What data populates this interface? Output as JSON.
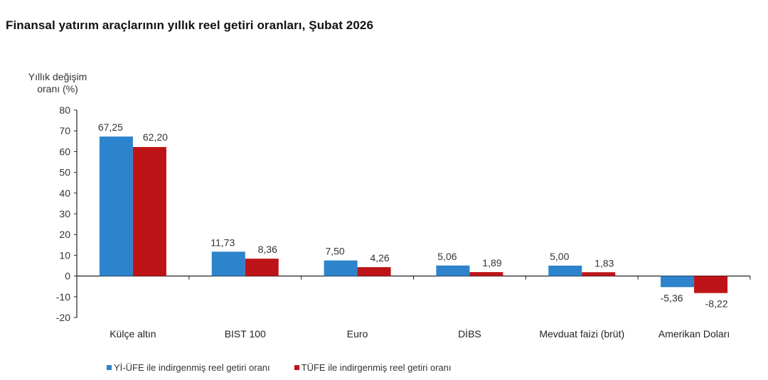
{
  "chart_data": {
    "type": "bar",
    "title": "Finansal yatırım araçlarının yıllık reel getiri oranları, Şubat 2026",
    "ylabel": "Yıllık değişim oranı (%)",
    "xlabel": "",
    "ylim": [
      -20,
      80
    ],
    "yticks": [
      80,
      70,
      60,
      50,
      40,
      30,
      20,
      10,
      0,
      -10,
      -20
    ],
    "grid": false,
    "legend_position": "bottom",
    "categories": [
      "Külçe altın",
      "BIST 100",
      "Euro",
      "DİBS",
      "Mevduat faizi (brüt)",
      "Amerikan Doları"
    ],
    "series": [
      {
        "name": "Yİ-ÜFE ile indirgenmiş reel getiri oranı",
        "color": "#2D83CC",
        "values": [
          67.25,
          11.73,
          7.5,
          5.06,
          5.0,
          -5.36
        ],
        "labels": [
          "67,25",
          "11,73",
          "7,50",
          "5,06",
          "5,00",
          "-5,36"
        ]
      },
      {
        "name": "TÜFE ile indirgenmiş reel getiri oranı",
        "color": "#BE1418",
        "values": [
          62.2,
          8.36,
          4.26,
          1.89,
          1.83,
          -8.22
        ],
        "labels": [
          "62,20",
          "8,36",
          "4,26",
          "1,89",
          "1,83",
          "-8,22"
        ]
      }
    ]
  },
  "header": {
    "title": "Finansal yatırım araçlarının yıllık reel getiri oranları, Şubat 2026"
  },
  "axis": {
    "ylabel_line1": "Yıllık değişim",
    "ylabel_line2": "oranı (%)"
  },
  "legend": {
    "items": [
      {
        "label": "Yİ-ÜFE ile indirgenmiş reel getiri oranı",
        "color": "#2D83CC"
      },
      {
        "label": "TÜFE ile indirgenmiş reel getiri oranı",
        "color": "#BE1418"
      }
    ]
  }
}
